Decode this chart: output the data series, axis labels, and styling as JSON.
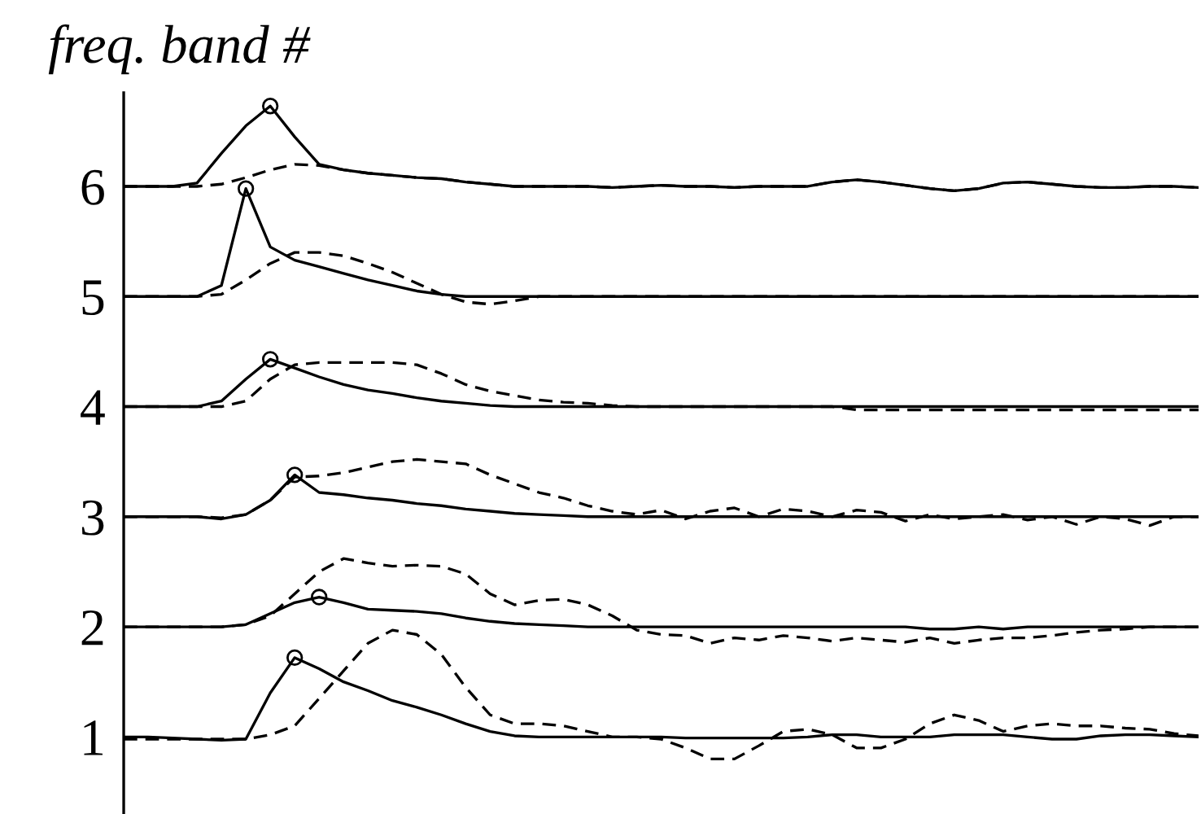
{
  "chart_data": {
    "type": "line",
    "ylabel": "freq. band #",
    "categories": [
      null,
      null,
      null,
      null,
      null,
      null,
      null,
      null,
      null,
      null,
      null,
      null,
      null,
      null,
      null,
      null,
      null,
      null,
      null,
      null,
      null,
      null,
      null,
      null,
      null,
      null,
      null,
      null,
      null,
      null,
      null,
      null,
      null,
      null,
      null,
      null,
      null,
      null,
      null,
      null,
      null,
      null,
      null,
      null,
      null
    ],
    "ylim": [
      0.3,
      6.85
    ],
    "yticks": [
      1,
      2,
      3,
      4,
      5,
      6
    ],
    "tick_labels": "y",
    "grid": false,
    "legend": false,
    "series": [
      {
        "line_style": "solid",
        "color": "#000000",
        "values": [
          6,
          6,
          6,
          6.03,
          6.3,
          6.55,
          6.73,
          6.45,
          6.2,
          6.15,
          6.12,
          6.1,
          6.08,
          6.07,
          6.04,
          6.02,
          6.0,
          6.0,
          6.0,
          6.0,
          5.99,
          6.0,
          6.01,
          6.0,
          6.0,
          5.99,
          6.0,
          6.0,
          6.0,
          6.04,
          6.06,
          6.04,
          6.01,
          5.98,
          5.96,
          5.98,
          6.03,
          6.04,
          6.02,
          6.0,
          5.99,
          5.99,
          6.0,
          6.0,
          5.99
        ]
      },
      {
        "line_style": "dashed",
        "color": "#000000",
        "values": [
          6,
          6,
          6,
          6,
          6.02,
          6.08,
          6.15,
          6.2,
          6.19,
          6.15,
          6.12,
          6.1,
          6.08,
          6.07,
          6.04,
          6.02,
          6.0,
          6.0,
          6.0,
          6.0,
          5.99,
          6.0,
          6.01,
          6.0,
          6.0,
          5.99,
          6.0,
          6.0,
          6.0,
          6.04,
          6.06,
          6.04,
          6.01,
          5.98,
          5.96,
          5.98,
          6.03,
          6.04,
          6.02,
          6.0,
          5.99,
          5.99,
          6.0,
          6.0,
          5.99
        ]
      },
      {
        "line_style": "solid",
        "color": "#000000",
        "values": [
          5,
          5,
          5,
          5.0,
          5.1,
          5.98,
          5.45,
          5.33,
          5.27,
          5.21,
          5.15,
          5.1,
          5.05,
          5.02,
          5,
          5,
          5,
          5,
          5,
          5,
          5,
          5,
          5,
          5,
          5,
          5,
          5,
          5,
          5,
          5,
          5,
          5,
          5,
          5,
          5,
          5,
          5,
          5,
          5,
          5,
          5,
          5,
          5,
          5,
          5
        ]
      },
      {
        "line_style": "dashed",
        "color": "#000000",
        "values": [
          5,
          5,
          5,
          5.0,
          5.02,
          5.15,
          5.3,
          5.4,
          5.4,
          5.37,
          5.3,
          5.22,
          5.12,
          5.02,
          4.95,
          4.93,
          4.96,
          5,
          5,
          5,
          5,
          5,
          5,
          5,
          5,
          5,
          5,
          5,
          5,
          5,
          5,
          5,
          5,
          5,
          5,
          5,
          5,
          5,
          5,
          5,
          5,
          5,
          5,
          5,
          5
        ]
      },
      {
        "line_style": "solid",
        "color": "#000000",
        "values": [
          4,
          4,
          4,
          4.0,
          4.05,
          4.25,
          4.43,
          4.35,
          4.27,
          4.2,
          4.15,
          4.12,
          4.08,
          4.05,
          4.03,
          4.01,
          4,
          4,
          4,
          4,
          4,
          4,
          4,
          4,
          4,
          4,
          4,
          4,
          4,
          4,
          4,
          4,
          4,
          4,
          4,
          4,
          4,
          4,
          4,
          4,
          4,
          4,
          4,
          4,
          4
        ]
      },
      {
        "line_style": "dashed",
        "color": "#000000",
        "values": [
          4,
          4,
          4,
          4.0,
          4.0,
          4.05,
          4.25,
          4.38,
          4.4,
          4.4,
          4.4,
          4.4,
          4.38,
          4.3,
          4.2,
          4.14,
          4.1,
          4.06,
          4.04,
          4.03,
          4.01,
          4,
          4,
          4,
          4,
          4,
          4,
          4,
          4,
          4,
          3.97,
          3.97,
          3.97,
          3.97,
          3.97,
          3.97,
          3.97,
          3.97,
          3.97,
          3.97,
          3.97,
          3.97,
          3.97,
          3.97,
          3.97
        ]
      },
      {
        "line_style": "solid",
        "color": "#000000",
        "values": [
          3,
          3,
          3,
          3,
          2.98,
          3.02,
          3.15,
          3.38,
          3.22,
          3.2,
          3.17,
          3.15,
          3.12,
          3.1,
          3.07,
          3.05,
          3.03,
          3.02,
          3.01,
          3,
          3,
          3,
          3,
          3,
          3,
          3,
          3,
          3,
          3,
          3,
          3,
          3,
          3,
          3,
          3,
          3,
          3,
          3,
          3,
          3,
          3,
          3,
          3,
          3,
          3
        ]
      },
      {
        "line_style": "dashed",
        "color": "#000000",
        "values": [
          3,
          3,
          3,
          3,
          2.99,
          3.02,
          3.15,
          3.36,
          3.37,
          3.4,
          3.45,
          3.5,
          3.52,
          3.5,
          3.48,
          3.38,
          3.3,
          3.22,
          3.17,
          3.1,
          3.05,
          3.02,
          3.06,
          2.98,
          3.05,
          3.08,
          3.0,
          3.07,
          3.05,
          3.0,
          3.06,
          3.04,
          2.96,
          3.02,
          2.98,
          3.0,
          3.02,
          2.97,
          3.0,
          2.93,
          3.0,
          2.98,
          2.92,
          3.0,
          3.0
        ]
      },
      {
        "line_style": "solid",
        "color": "#000000",
        "values": [
          2,
          2,
          2,
          2,
          2,
          2.02,
          2.12,
          2.22,
          2.27,
          2.22,
          2.16,
          2.15,
          2.14,
          2.12,
          2.08,
          2.05,
          2.03,
          2.02,
          2.01,
          2,
          2,
          2,
          2,
          2,
          2,
          2,
          2,
          2,
          2,
          2,
          2,
          2,
          2,
          1.98,
          1.98,
          2,
          1.98,
          2,
          2,
          2,
          2,
          2,
          2,
          2,
          2
        ]
      },
      {
        "line_style": "dashed",
        "color": "#000000",
        "values": [
          2,
          2,
          2,
          2,
          2,
          2.02,
          2.1,
          2.3,
          2.5,
          2.62,
          2.58,
          2.55,
          2.56,
          2.55,
          2.48,
          2.3,
          2.2,
          2.24,
          2.25,
          2.2,
          2.1,
          1.97,
          1.93,
          1.92,
          1.85,
          1.9,
          1.88,
          1.92,
          1.9,
          1.87,
          1.9,
          1.88,
          1.86,
          1.9,
          1.85,
          1.88,
          1.9,
          1.9,
          1.92,
          1.95,
          1.97,
          1.98,
          2.0,
          2.0,
          2.0
        ]
      },
      {
        "line_style": "solid",
        "color": "#000000",
        "values": [
          1,
          1,
          0.99,
          0.98,
          0.97,
          0.98,
          1.4,
          1.72,
          1.62,
          1.5,
          1.42,
          1.33,
          1.27,
          1.2,
          1.12,
          1.05,
          1.01,
          1,
          1,
          1,
          1,
          1,
          1,
          0.99,
          0.99,
          0.99,
          0.99,
          0.99,
          1,
          1.02,
          1.02,
          1,
          1,
          1,
          1.02,
          1.02,
          1.02,
          1,
          0.98,
          0.98,
          1.01,
          1.02,
          1.02,
          1.01,
          1
        ]
      },
      {
        "line_style": "dashed",
        "color": "#000000",
        "values": [
          0.98,
          0.98,
          0.98,
          0.98,
          0.98,
          0.98,
          1.02,
          1.1,
          1.35,
          1.6,
          1.85,
          1.97,
          1.93,
          1.75,
          1.45,
          1.2,
          1.12,
          1.12,
          1.1,
          1.05,
          1,
          1,
          0.98,
          0.9,
          0.8,
          0.8,
          0.92,
          1.05,
          1.07,
          1.02,
          0.9,
          0.9,
          0.98,
          1.12,
          1.2,
          1.15,
          1.05,
          1.1,
          1.12,
          1.1,
          1.1,
          1.08,
          1.07,
          1.03,
          1.01
        ]
      },
      {
        "type": "scatter",
        "marker": "circle",
        "color": "#000000",
        "values": [
          null,
          null,
          null,
          null,
          null,
          5.98,
          6.73,
          1.72,
          2.27,
          null,
          null,
          null,
          null,
          null,
          null,
          null,
          null,
          null,
          null,
          null,
          null,
          null,
          null,
          null,
          null,
          null,
          null,
          null,
          null,
          null,
          null,
          null,
          null,
          null,
          null,
          null,
          null,
          null,
          null,
          null,
          null,
          null,
          null,
          null,
          null
        ]
      },
      {
        "type": "scatter",
        "marker": "circle",
        "color": "#000000",
        "values": [
          null,
          null,
          null,
          null,
          null,
          null,
          4.43,
          3.38,
          null,
          null,
          null,
          null,
          null,
          null,
          null,
          null,
          null,
          null,
          null,
          null,
          null,
          null,
          null,
          null,
          null,
          null,
          null,
          null,
          null,
          null,
          null,
          null,
          null,
          null,
          null,
          null,
          null,
          null,
          null,
          null,
          null,
          null,
          null,
          null,
          null
        ]
      }
    ]
  }
}
